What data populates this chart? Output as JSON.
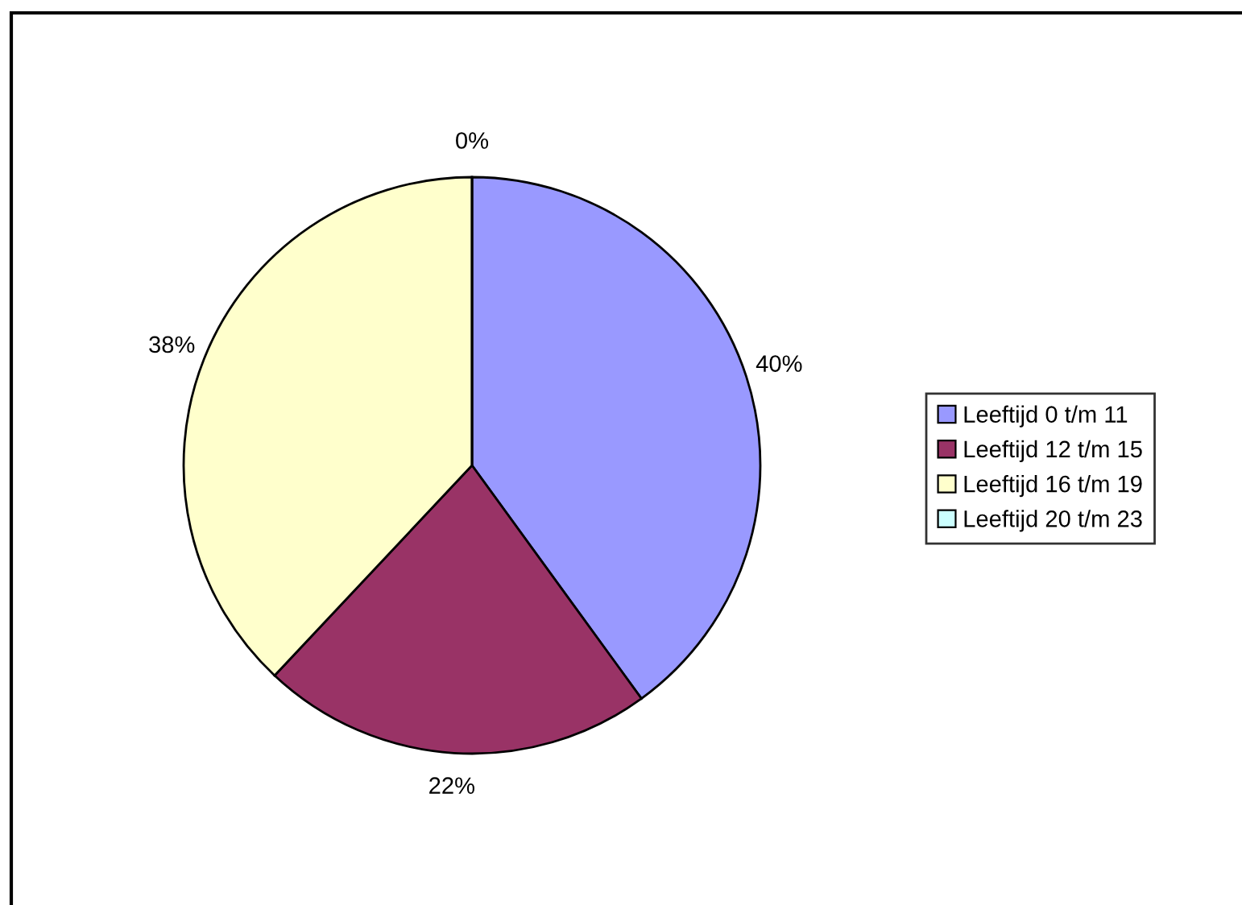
{
  "chart_data": {
    "type": "pie",
    "categories": [
      "Leeftijd 0 t/m 11",
      "Leeftijd 12 t/m 15",
      "Leeftijd 16 t/m 19",
      "Leeftijd 20 t/m 23"
    ],
    "values": [
      40,
      22,
      38,
      0
    ],
    "colors": [
      "#9999ff",
      "#993366",
      "#ffffcc",
      "#ccffff"
    ],
    "value_labels": [
      "40%",
      "22%",
      "38%",
      "0%"
    ],
    "legend": "right"
  }
}
